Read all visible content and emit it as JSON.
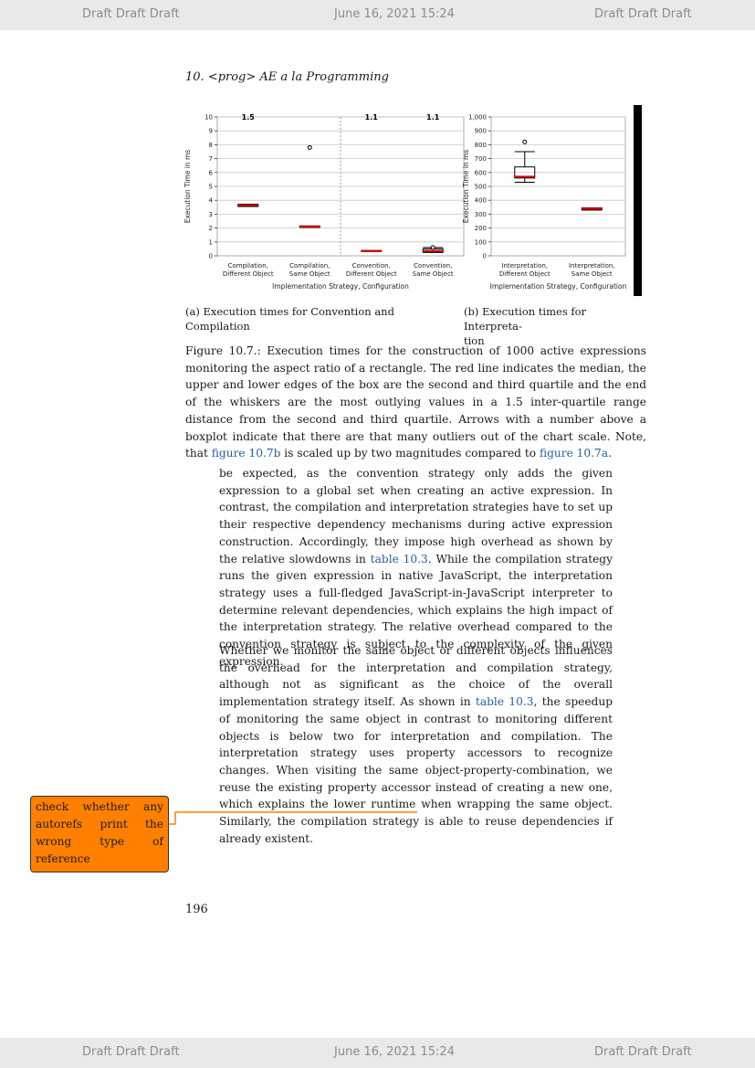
{
  "page": {
    "draft_left": "Draft Draft Draft",
    "draft_center": "June 16, 2021 15:24",
    "draft_right": "Draft Draft Draft",
    "running_header": "10.  <prog> AE a la Programming",
    "page_number": "196"
  },
  "chart_data": [
    {
      "type": "box",
      "ylabel": "Execution Time in ms",
      "xlabel": "Implementation Strategy, Configuration",
      "ylim": [
        0,
        10
      ],
      "yticks": [
        0,
        1,
        2,
        3,
        4,
        5,
        6,
        7,
        8,
        9,
        10
      ],
      "grid": true,
      "categories": [
        "Compilation, Different Object",
        "Compilation, Same Object",
        "Convention, Different Object",
        "Convention, Same Object"
      ],
      "outlier_arrows": [
        "1.5",
        "",
        "1.1",
        "1.1"
      ],
      "series": [
        {
          "median": 3.65,
          "q1": 3.55,
          "q3": 3.72,
          "whisker_low": 3.55,
          "whisker_high": 3.72,
          "outliers": []
        },
        {
          "median": 2.1,
          "q1": 2.05,
          "q3": 2.15,
          "whisker_low": 2.05,
          "whisker_high": 2.15,
          "outliers": [
            7.8
          ]
        },
        {
          "median": 0.35,
          "q1": 0.32,
          "q3": 0.38,
          "whisker_low": 0.32,
          "whisker_high": 0.38,
          "outliers": []
        },
        {
          "median": 0.35,
          "q1": 0.25,
          "q3": 0.5,
          "whisker_low": 0.25,
          "whisker_high": 0.6,
          "outliers": [
            0.6
          ]
        }
      ]
    },
    {
      "type": "box",
      "ylabel": "Execution Time in ms",
      "xlabel": "Implementation Strategy, Configuration",
      "ylim": [
        0,
        1000
      ],
      "yticks": [
        0,
        100,
        200,
        300,
        400,
        500,
        600,
        700,
        800,
        900,
        1000
      ],
      "ytick_labels": [
        "0",
        "100",
        "200",
        "300",
        "400",
        "500",
        "600",
        "700",
        "800",
        "900",
        "1,000"
      ],
      "grid": true,
      "categories": [
        "Interpretation, Different Object",
        "Interpretation, Same Object"
      ],
      "series": [
        {
          "median": 570,
          "q1": 560,
          "q3": 640,
          "whisker_low": 530,
          "whisker_high": 750,
          "outliers": [
            820
          ]
        },
        {
          "median": 340,
          "q1": 330,
          "q3": 345,
          "whisker_low": 330,
          "whisker_high": 345,
          "outliers": []
        }
      ]
    }
  ],
  "subcaptions": {
    "a": "(a) Execution times for Convention and Compilation",
    "b_line1": "(b) Execution times for Interpreta-",
    "b_line2": "tion"
  },
  "caption": {
    "text": "Figure 10.7.: Execution times for the construction of 1000 active expressions monitoring the aspect ratio of a rectangle. The red line indicates the median, the upper and lower edges of the box are the second and third quartile and the end of the whiskers are the most outlying values in a 1.5 inter-quartile range distance from the second and third quartile. Arrows with a number above a boxplot indicate that there are that many outliers out of the chart scale. Note, that ",
    "ref1": "figure 10.7b",
    "mid": " is scaled up by two magnitudes compared to ",
    "ref2": "figure 10.7a",
    "end": "."
  },
  "paragraph1": {
    "a": "be expected, as the convention strategy only adds the given expression to a global set when creating an active expression. In contrast, the compilation and interpretation strategies have to set up their respective dependency mechanisms during active expression construction. Accordingly, they impose high overhead as shown by the relative slowdowns in ",
    "ref": "table 10.3",
    "b": ". While the compilation strategy runs the given expression in native JavaScript, the interpretation strategy uses a full-fledged JavaScript-in-JavaScript interpreter to determine relevant dependencies, which explains the high impact of the interpretation strategy. The relative overhead compared to the convention strategy is subject to the complexity of the given expression."
  },
  "paragraph2": {
    "a": "Whether we monitor the same object or different objects influences the overhead for the interpretation and compilation strategy, although not as significant as the choice of the overall implementation strategy itself. As shown in ",
    "ref": "table 10.3",
    "b": ", the speedup of monitoring the same object in contrast to monitoring different objects is below two for interpretation and compilation. The interpretation strategy uses property accessors to recognize changes. When visiting the same object-property-combination, we reuse the existing property accessor instead of creating a new one, which explains the lower runtime when wrapping the same object. Similarly, the compilation strategy is able to reuse dependencies if already existent."
  },
  "margin_note": "check whether any autorefs print the wrong type of reference",
  "colors": {
    "median": "#e00000",
    "note_bg": "#ff8000",
    "note_line": "#ff8000",
    "link": "#1f5fa8"
  }
}
